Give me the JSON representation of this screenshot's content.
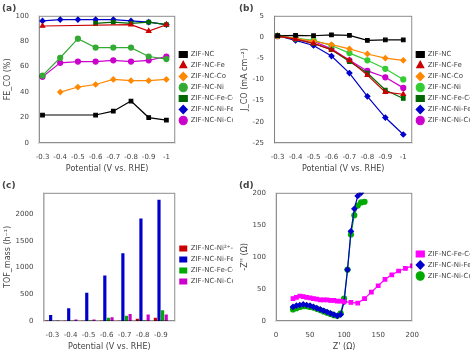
{
  "chart_data": [
    {
      "type": "line",
      "title": "(a)",
      "xlabel": "Potential (V vs. RHE)",
      "ylabel": "FE_CO (%)",
      "xlim": [
        -0.28,
        -1.05
      ],
      "xticks": [
        -0.3,
        -0.4,
        -0.5,
        -0.6,
        -0.7,
        -0.8,
        -0.9,
        -1.0
      ],
      "ylim": [
        0,
        100
      ],
      "yticks": [
        0,
        20,
        40,
        60,
        80,
        100
      ],
      "grid": false,
      "legend": "right",
      "series": [
        {
          "name": "ZIF-NC",
          "color": "#000000",
          "marker": "square",
          "x": [
            -0.3,
            -0.6,
            -0.7,
            -0.8,
            -0.9,
            -1.0
          ],
          "values": [
            22,
            22,
            25,
            33,
            20,
            18
          ]
        },
        {
          "name": "ZIF-NC-Fe",
          "color": "#cc0000",
          "marker": "triangle",
          "x": [
            -0.3,
            -0.8,
            -0.9,
            -1.0
          ],
          "values": [
            92,
            93,
            88,
            93
          ]
        },
        {
          "name": "ZIF-NC-Co",
          "color": "#ff8800",
          "marker": "diamond",
          "x": [
            -0.4,
            -0.5,
            -0.6,
            -0.7,
            -0.8,
            -0.9,
            -1.0
          ],
          "values": [
            40,
            44,
            46,
            50,
            49,
            49,
            50
          ]
        },
        {
          "name": "ZIF-NC-Ni",
          "color": "#33aa33",
          "marker": "circle",
          "x": [
            -0.3,
            -0.4,
            -0.5,
            -0.6,
            -0.7,
            -0.8,
            -0.9,
            -1.0
          ],
          "values": [
            53,
            67,
            82,
            75,
            75,
            75,
            68,
            66
          ]
        },
        {
          "name": "ZIF-NC-Fe-Co",
          "color": "#006600",
          "marker": "square",
          "x": [
            -0.6,
            -0.7,
            -0.8,
            -0.9,
            -1.0
          ],
          "values": [
            94,
            95,
            94,
            95,
            93
          ]
        },
        {
          "name": "ZIF-NC-Ni-Fe",
          "color": "#0000cc",
          "marker": "diamond",
          "x": [
            -0.3,
            -0.4,
            -0.5,
            -0.6,
            -0.7,
            -0.8,
            -0.9,
            -1.0
          ],
          "values": [
            96,
            97,
            97,
            97,
            97,
            96,
            95,
            93
          ]
        },
        {
          "name": "ZIF-NC-Ni-Co",
          "color": "#cc00cc",
          "marker": "circle",
          "x": [
            -0.3,
            -0.4,
            -0.5,
            -0.6,
            -0.7,
            -0.8,
            -0.9,
            -1.0
          ],
          "values": [
            52,
            63,
            64,
            64,
            65,
            64,
            65,
            68
          ]
        }
      ]
    },
    {
      "type": "line",
      "title": "(b)",
      "xlabel": "Potential (V vs. RHE)",
      "ylabel": "J_CO (mA cm⁻²)",
      "xlim": [
        -0.28,
        -1.05
      ],
      "xticks": [
        -0.3,
        -0.4,
        -0.5,
        -0.6,
        -0.7,
        -0.8,
        -0.9,
        -1.0
      ],
      "ylim": [
        -25,
        5
      ],
      "yticks": [
        -25,
        -20,
        -15,
        -10,
        -5,
        0,
        5
      ],
      "grid": false,
      "legend": "right",
      "x": [
        -0.3,
        -0.4,
        -0.5,
        -0.6,
        -0.7,
        -0.8,
        -0.9,
        -1.0
      ],
      "series": [
        {
          "name": "ZIF-NC",
          "color": "#000000",
          "marker": "square",
          "values": [
            0.3,
            0.4,
            0.3,
            0.5,
            0.4,
            -0.8,
            -0.7,
            -0.7
          ]
        },
        {
          "name": "ZIF-NC-Fe",
          "color": "#cc0000",
          "marker": "triangle",
          "values": [
            0.2,
            -0.5,
            -1.5,
            -3.0,
            -5.5,
            -9.0,
            -13.0,
            -13.5
          ]
        },
        {
          "name": "ZIF-NC-Co",
          "color": "#ff8800",
          "marker": "diamond",
          "values": [
            0.2,
            -0.3,
            -1.0,
            -1.8,
            -2.8,
            -4.0,
            -5.0,
            -5.5
          ]
        },
        {
          "name": "ZIF-NC-Ni",
          "color": "#33cc33",
          "marker": "circle",
          "values": [
            0.3,
            -0.3,
            -0.8,
            -2.0,
            -3.8,
            -5.5,
            -7.5,
            -10.0
          ]
        },
        {
          "name": "ZIF-NC-Fe-Co",
          "color": "#006600",
          "marker": "square",
          "values": [
            0.2,
            -0.5,
            -1.5,
            -3.0,
            -5.8,
            -8.5,
            -12.5,
            -14.5
          ]
        },
        {
          "name": "ZIF-NC-Ni-Fe",
          "color": "#0000cc",
          "marker": "diamond",
          "values": [
            0.3,
            -0.8,
            -2.0,
            -4.5,
            -8.5,
            -14.0,
            -19.0,
            -23.0
          ]
        },
        {
          "name": "ZIF-NC-Ni-Co",
          "color": "#cc00cc",
          "marker": "circle",
          "values": [
            0.2,
            -0.3,
            -1.0,
            -2.8,
            -5.5,
            -8.0,
            -9.5,
            -12.0
          ]
        }
      ]
    },
    {
      "type": "bar",
      "title": "(c)",
      "xlabel": "Potential (V vs. RHE)",
      "ylabel": "TOF_mass (h⁻¹)",
      "xlim": [
        -0.25,
        -0.98
      ],
      "xticks": [
        -0.3,
        -0.4,
        -0.5,
        -0.6,
        -0.7,
        -0.8,
        -0.9
      ],
      "ylim": [
        0,
        2400
      ],
      "yticks": [
        0,
        500,
        1000,
        1500,
        2000
      ],
      "grid": false,
      "legend": "right",
      "x": [
        -0.3,
        -0.4,
        -0.5,
        -0.6,
        -0.7,
        -0.8,
        -0.9
      ],
      "series": [
        {
          "name": "ZIF-NC-Ni²⁺-Fe³⁺",
          "color": "#cc0000",
          "values": [
            8,
            5,
            5,
            5,
            5,
            40,
            60
          ]
        },
        {
          "name": "ZIF-NC-Ni-Fe",
          "color": "#0000cc",
          "values": [
            110,
            240,
            530,
            850,
            1270,
            1920,
            2270
          ]
        },
        {
          "name": "ZIF-NC-Fe-Co",
          "color": "#00aa00",
          "values": [
            5,
            5,
            8,
            60,
            100,
            10,
            200
          ]
        },
        {
          "name": "ZIF-NC-Ni-Co",
          "color": "#cc00cc",
          "values": [
            8,
            30,
            30,
            70,
            130,
            120,
            120
          ]
        }
      ]
    },
    {
      "type": "line",
      "title": "(d)",
      "xlabel": "Z' (Ω)",
      "ylabel": "-Z'' (Ω)",
      "xlim": [
        0,
        200
      ],
      "xticks": [
        0,
        50,
        100,
        150,
        200
      ],
      "ylim": [
        0,
        200
      ],
      "yticks": [
        0,
        50,
        100,
        150,
        200
      ],
      "grid": false,
      "legend": "right",
      "series": [
        {
          "name": "ZIF-NC-Fe-Co",
          "color": "#ff00ff",
          "marker": "square",
          "x": [
            25,
            30,
            35,
            40,
            45,
            50,
            55,
            60,
            65,
            70,
            75,
            80,
            85,
            90,
            95,
            100,
            110,
            120,
            130,
            140,
            150,
            160,
            170,
            180,
            190,
            200
          ],
          "values": [
            35,
            37,
            39,
            38,
            37,
            36,
            35,
            34,
            33,
            33,
            33,
            32,
            32,
            31,
            31,
            30,
            29,
            28,
            35,
            45,
            55,
            65,
            72,
            78,
            82,
            86
          ]
        },
        {
          "name": "ZIF-NC-Ni-Fe",
          "color": "#0000cc",
          "marker": "diamond",
          "x": [
            25,
            30,
            35,
            40,
            45,
            50,
            55,
            60,
            65,
            70,
            75,
            80,
            85,
            90,
            95,
            100,
            105,
            110,
            115,
            120,
            125
          ],
          "values": [
            22,
            24,
            25,
            26,
            25,
            24,
            22,
            20,
            18,
            16,
            14,
            12,
            10,
            8,
            10,
            30,
            80,
            140,
            175,
            195,
            200
          ]
        },
        {
          "name": "ZIF-NC-Ni-Co",
          "color": "#00aa00",
          "marker": "circle",
          "x": [
            25,
            30,
            35,
            40,
            45,
            50,
            55,
            60,
            65,
            70,
            75,
            80,
            85,
            90,
            95,
            100,
            105,
            110,
            115,
            120,
            125,
            130
          ],
          "values": [
            18,
            20,
            22,
            23,
            23,
            22,
            21,
            19,
            17,
            15,
            13,
            11,
            9,
            8,
            12,
            35,
            80,
            135,
            165,
            180,
            185,
            186
          ]
        }
      ]
    }
  ]
}
